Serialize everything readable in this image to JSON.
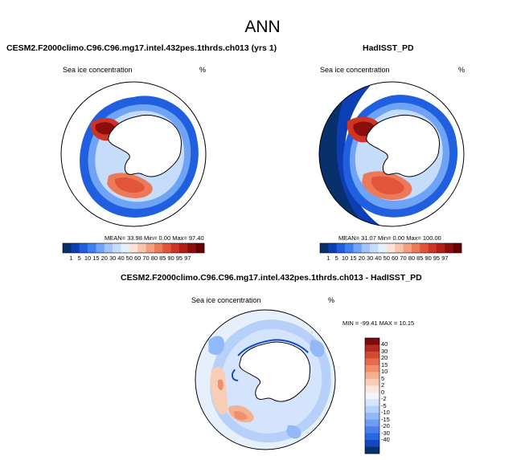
{
  "main_title": "ANN",
  "colors": {
    "scale": [
      "#08306b",
      "#0b3fb3",
      "#1f5fe0",
      "#3f7ff0",
      "#6fa3f5",
      "#9ec4fa",
      "#c6dcfb",
      "#e6f0fb",
      "#fbe3d6",
      "#f7c4aa",
      "#f29f80",
      "#ec7a58",
      "#e2553a",
      "#cf3425",
      "#b01e18",
      "#8b0d0d",
      "#6b0000"
    ],
    "diff_scale": [
      "#08306b",
      "#1048c0",
      "#2a66e0",
      "#4a80ee",
      "#6e9cf3",
      "#93b8f7",
      "#b6d0fa",
      "#d4e4fc",
      "#f1f5fb",
      "#fbe6da",
      "#f8cdb6",
      "#f4b091",
      "#ef8f6d",
      "#e56b4d",
      "#d24a33",
      "#b02a1f",
      "#7a0c0c"
    ]
  },
  "panels": {
    "left": {
      "title": "CESM2.F2000climo.C96.C96.mg17.intel.432pes.1thrds.ch013 (yrs 1)",
      "variable": "Sea ice concentration",
      "unit": "%",
      "stats": "MEAN=  33.98  Min=   0.00  Max=  97.40",
      "colorbar_labels": [
        "1",
        "5",
        "10",
        "15",
        "20",
        "30",
        "40",
        "50",
        "60",
        "70",
        "80",
        "85",
        "90",
        "95",
        "97"
      ]
    },
    "right": {
      "title": "HadISST_PD",
      "variable": "Sea ice concentration",
      "unit": "%",
      "stats": "MEAN=  31.07  Min=   0.00  Max= 100.00",
      "colorbar_labels": [
        "1",
        "5",
        "10",
        "15",
        "20",
        "30",
        "40",
        "50",
        "60",
        "70",
        "80",
        "85",
        "90",
        "95",
        "97"
      ]
    },
    "diff": {
      "title": "CESM2.F2000climo.C96.C96.mg17.intel.432pes.1thrds.ch013 - HadISST_PD",
      "variable": "Sea ice concentration",
      "unit": "%",
      "stats": "MIN = -99.41  MAX =  10.15",
      "colorbar_labels": [
        "40",
        "30",
        "20",
        "15",
        "10",
        "5",
        "2",
        "0",
        "-2",
        "-5",
        "-10",
        "-15",
        "-20",
        "-30",
        "-40"
      ]
    }
  }
}
